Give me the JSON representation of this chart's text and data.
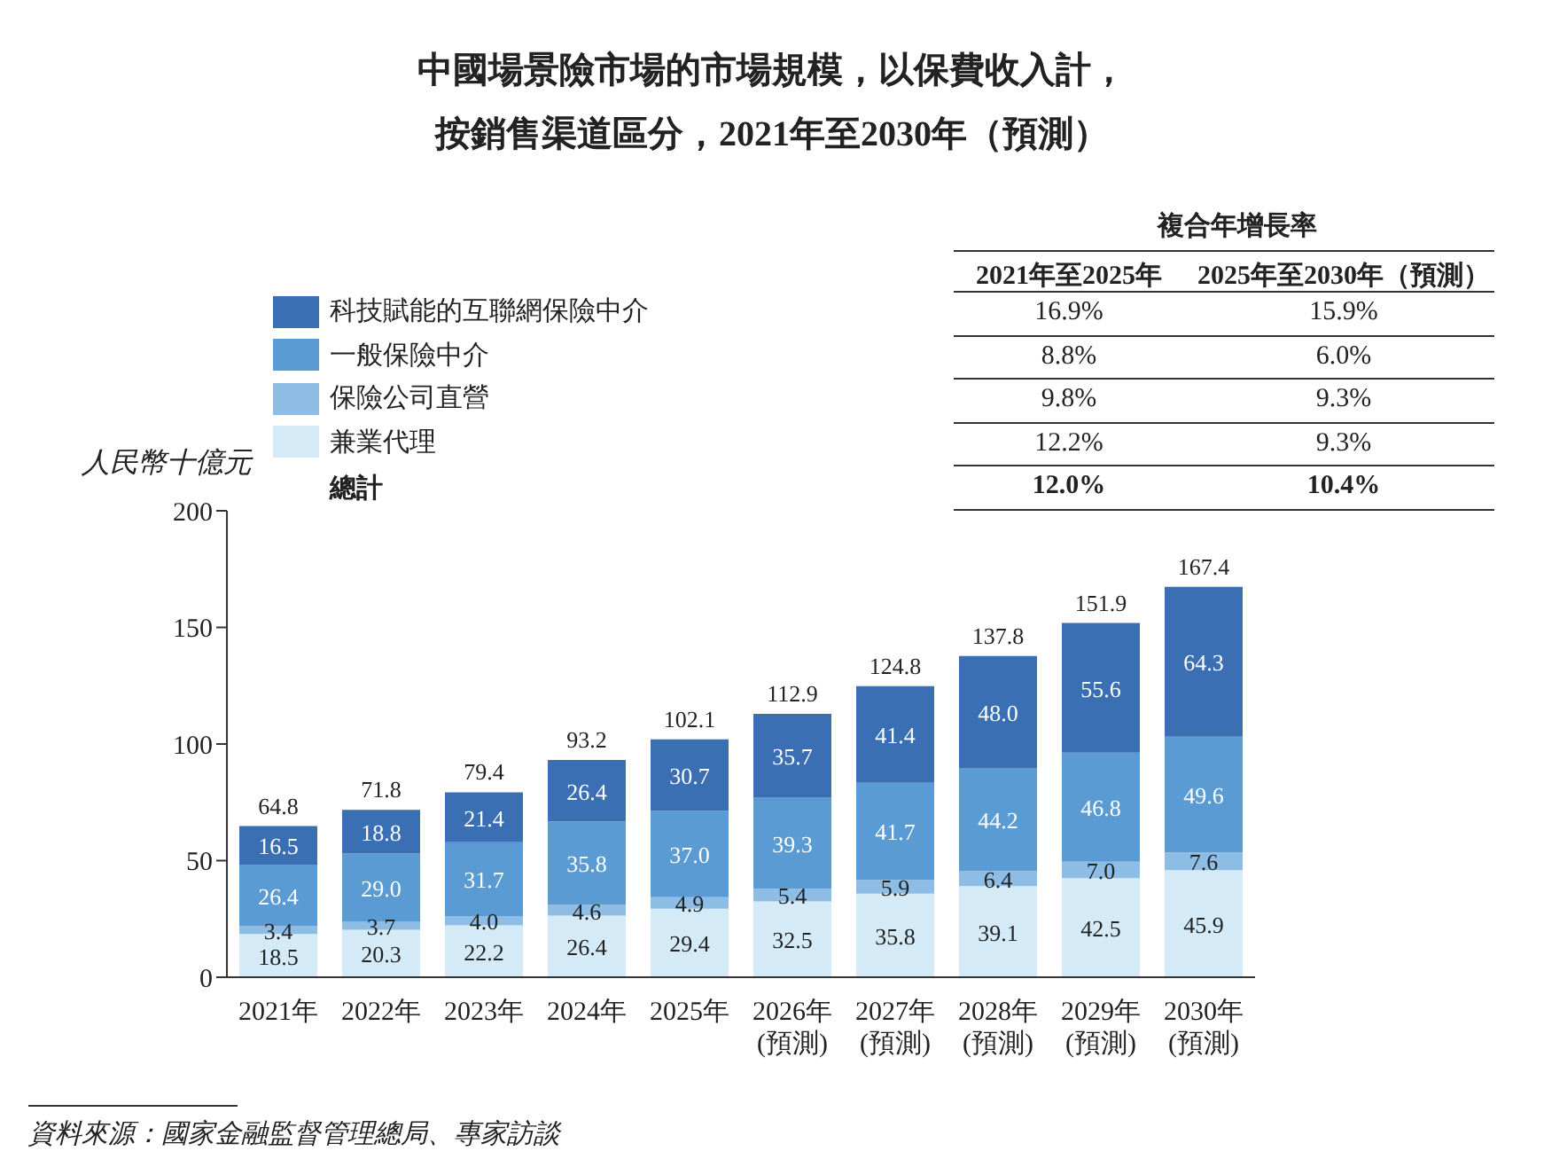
{
  "chart_data": {
    "type": "bar",
    "stacked": true,
    "legend": "top left",
    "title": "中國場景險市場的市場規模，以保費收入計，",
    "subtitle": "按銷售渠道區分，2021年至2030年（預測）",
    "ylabel": "人民幣十億元",
    "categories": [
      "2021年",
      "2022年",
      "2023年",
      "2024年",
      "2025年",
      "2026年\n(預測)",
      "2027年\n(預測)",
      "2028年\n(預測)",
      "2029年\n(預測)",
      "2030年\n(預測)"
    ],
    "series": [
      {
        "name": "兼業代理",
        "color": "#d4ebf7",
        "values": [
          18.5,
          20.3,
          22.2,
          26.4,
          29.4,
          32.5,
          35.8,
          39.1,
          42.5,
          45.9
        ],
        "value_labels": [
          "18.5",
          "20.3",
          "22.2",
          "26.4",
          "29.4",
          "32.5",
          "35.8",
          "39.1",
          "42.5",
          "45.9"
        ]
      },
      {
        "name": "保險公司直營",
        "color": "#8dbde4",
        "values": [
          3.4,
          3.7,
          4.0,
          4.6,
          4.9,
          5.4,
          5.9,
          6.4,
          7.0,
          7.6
        ],
        "value_labels": [
          "3.4",
          "3.7",
          "4.0",
          "4.6",
          "4.9",
          "5.4",
          "5.9",
          "6.4",
          "7.0",
          "7.6"
        ]
      },
      {
        "name": "一般保險中介",
        "color": "#5b9bd3",
        "values": [
          26.4,
          29.0,
          31.7,
          35.8,
          37.0,
          39.3,
          41.7,
          44.2,
          46.8,
          49.6
        ],
        "value_labels": [
          "26.4",
          "29.0",
          "31.7",
          "35.8",
          "37.0",
          "39.3",
          "41.7",
          "44.2",
          "46.8",
          "49.6"
        ]
      },
      {
        "name": "科技賦能的互聯網保險中介",
        "color": "#3a6fb3",
        "values": [
          16.5,
          18.8,
          21.4,
          26.4,
          30.7,
          35.7,
          41.4,
          48.0,
          55.6,
          64.3
        ],
        "value_labels": [
          "16.5",
          "18.8",
          "21.4",
          "26.4",
          "30.7",
          "35.7",
          "41.4",
          "48.0",
          "55.6",
          "64.3"
        ]
      }
    ],
    "totals": [
      "64.8",
      "71.8",
      "79.4",
      "93.2",
      "102.1",
      "112.9",
      "124.8",
      "137.8",
      "151.9",
      "167.4"
    ],
    "ylim": [
      0,
      200
    ],
    "yticks": [
      0,
      50,
      100,
      150,
      200
    ],
    "annotations": [
      "複合年增長率",
      "2021年至2025年",
      "2025年至2030年（預測）",
      "16.9%",
      "15.9%",
      "8.8%",
      "6.0%",
      "9.8%",
      "9.3%",
      "12.2%",
      "9.3%",
      "總計",
      "12.0%",
      "10.4%",
      "資料來源：國家金融監督管理總局、專家訪談"
    ]
  }
}
